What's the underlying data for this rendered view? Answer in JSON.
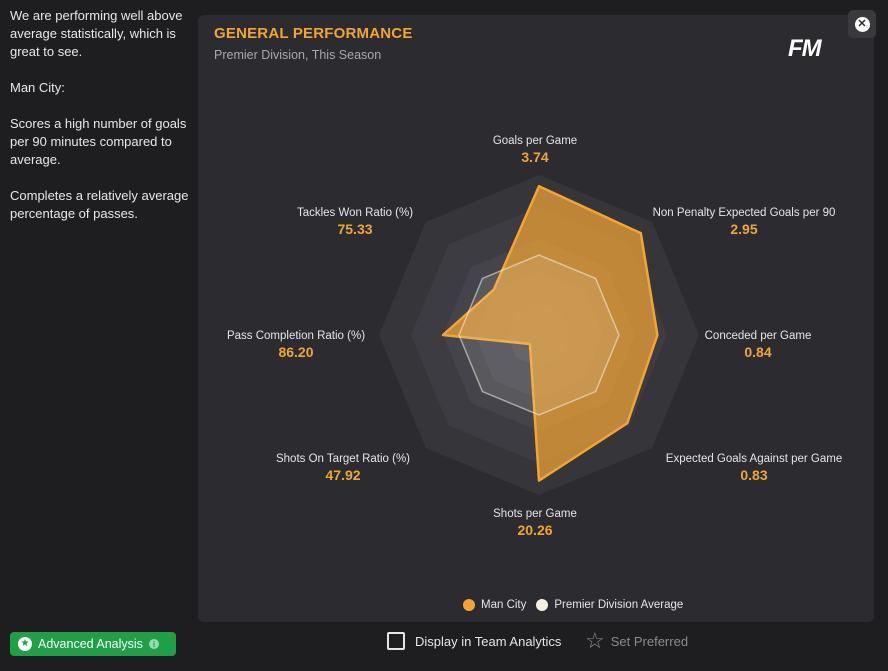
{
  "side_text": {
    "p1": "We are performing well above average statistically, which is great to see.",
    "p2": "Man City:",
    "p3": "Scores a high number of goals per 90 minutes compared to average.",
    "p4": "Completes a relatively average percentage of passes."
  },
  "panel": {
    "title": "GENERAL PERFORMANCE",
    "subtitle": "Premier Division, This Season",
    "logo": "FM"
  },
  "close_icon": "close-icon",
  "chart_data": {
    "type": "radar",
    "axes": [
      {
        "label": "Goals per Game",
        "value": "3.74"
      },
      {
        "label": "Non Penalty Expected Goals per 90",
        "value": "2.95"
      },
      {
        "label": "Conceded per Game",
        "value": "0.84"
      },
      {
        "label": "Expected Goals Against per Game",
        "value": "0.83"
      },
      {
        "label": "Shots per Game",
        "value": "20.26"
      },
      {
        "label": "Shots On Target Ratio (%)",
        "value": "47.92"
      },
      {
        "label": "Pass Completion Ratio (%)",
        "value": "86.20"
      },
      {
        "label": "Tackles Won Ratio (%)",
        "value": "75.33"
      }
    ],
    "series": [
      {
        "name": "Man City",
        "color": "#f2a533",
        "values": [
          0.93,
          0.9,
          0.74,
          0.78,
          0.91,
          0.08,
          0.6,
          0.4
        ]
      },
      {
        "name": "Premier Division Average",
        "color": "#f5f0e6",
        "values": [
          0.5,
          0.5,
          0.5,
          0.5,
          0.5,
          0.5,
          0.5,
          0.5
        ]
      }
    ]
  },
  "legend": {
    "item1": "Man City",
    "item2": "Premier Division Average"
  },
  "footer": {
    "advanced_label": "Advanced Analysis",
    "display_label": "Display in Team Analytics",
    "preferred_label": "Set Preferred"
  }
}
